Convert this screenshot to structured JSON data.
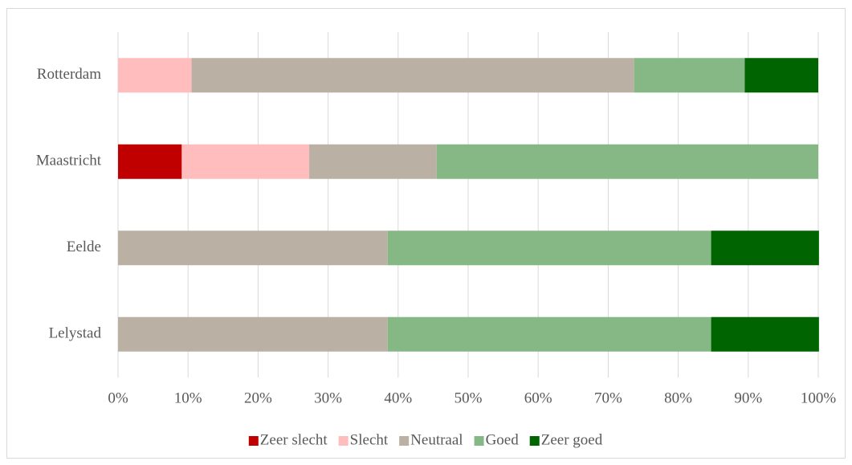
{
  "chart_data": {
    "type": "stacked_barh",
    "categories": [
      "Rotterdam",
      "Maastricht",
      "Eelde",
      "Lelystad"
    ],
    "series": [
      {
        "name": "Zeer slecht",
        "color": "#c00000",
        "values": [
          0,
          9.1,
          0,
          0
        ]
      },
      {
        "name": "Slecht",
        "color": "#ffbdbd",
        "values": [
          10.5,
          18.2,
          0,
          0
        ]
      },
      {
        "name": "Neutraal",
        "color": "#bab0a3",
        "values": [
          63.2,
          18.2,
          38.5,
          38.5
        ]
      },
      {
        "name": "Goed",
        "color": "#86b886",
        "values": [
          15.8,
          54.5,
          46.2,
          46.2
        ]
      },
      {
        "name": "Zeer goed",
        "color": "#006400",
        "values": [
          10.5,
          0,
          15.4,
          15.4
        ]
      }
    ],
    "xlim": [
      0,
      100
    ],
    "xticks": [
      {
        "value": 0,
        "label": "0%"
      },
      {
        "value": 10,
        "label": "10%"
      },
      {
        "value": 20,
        "label": "20%"
      },
      {
        "value": 30,
        "label": "30%"
      },
      {
        "value": 40,
        "label": "40%"
      },
      {
        "value": 50,
        "label": "50%"
      },
      {
        "value": 60,
        "label": "60%"
      },
      {
        "value": 70,
        "label": "70%"
      },
      {
        "value": 80,
        "label": "80%"
      },
      {
        "value": 90,
        "label": "90%"
      },
      {
        "value": 100,
        "label": "100%"
      }
    ],
    "grid": true,
    "legend": "bottom"
  }
}
